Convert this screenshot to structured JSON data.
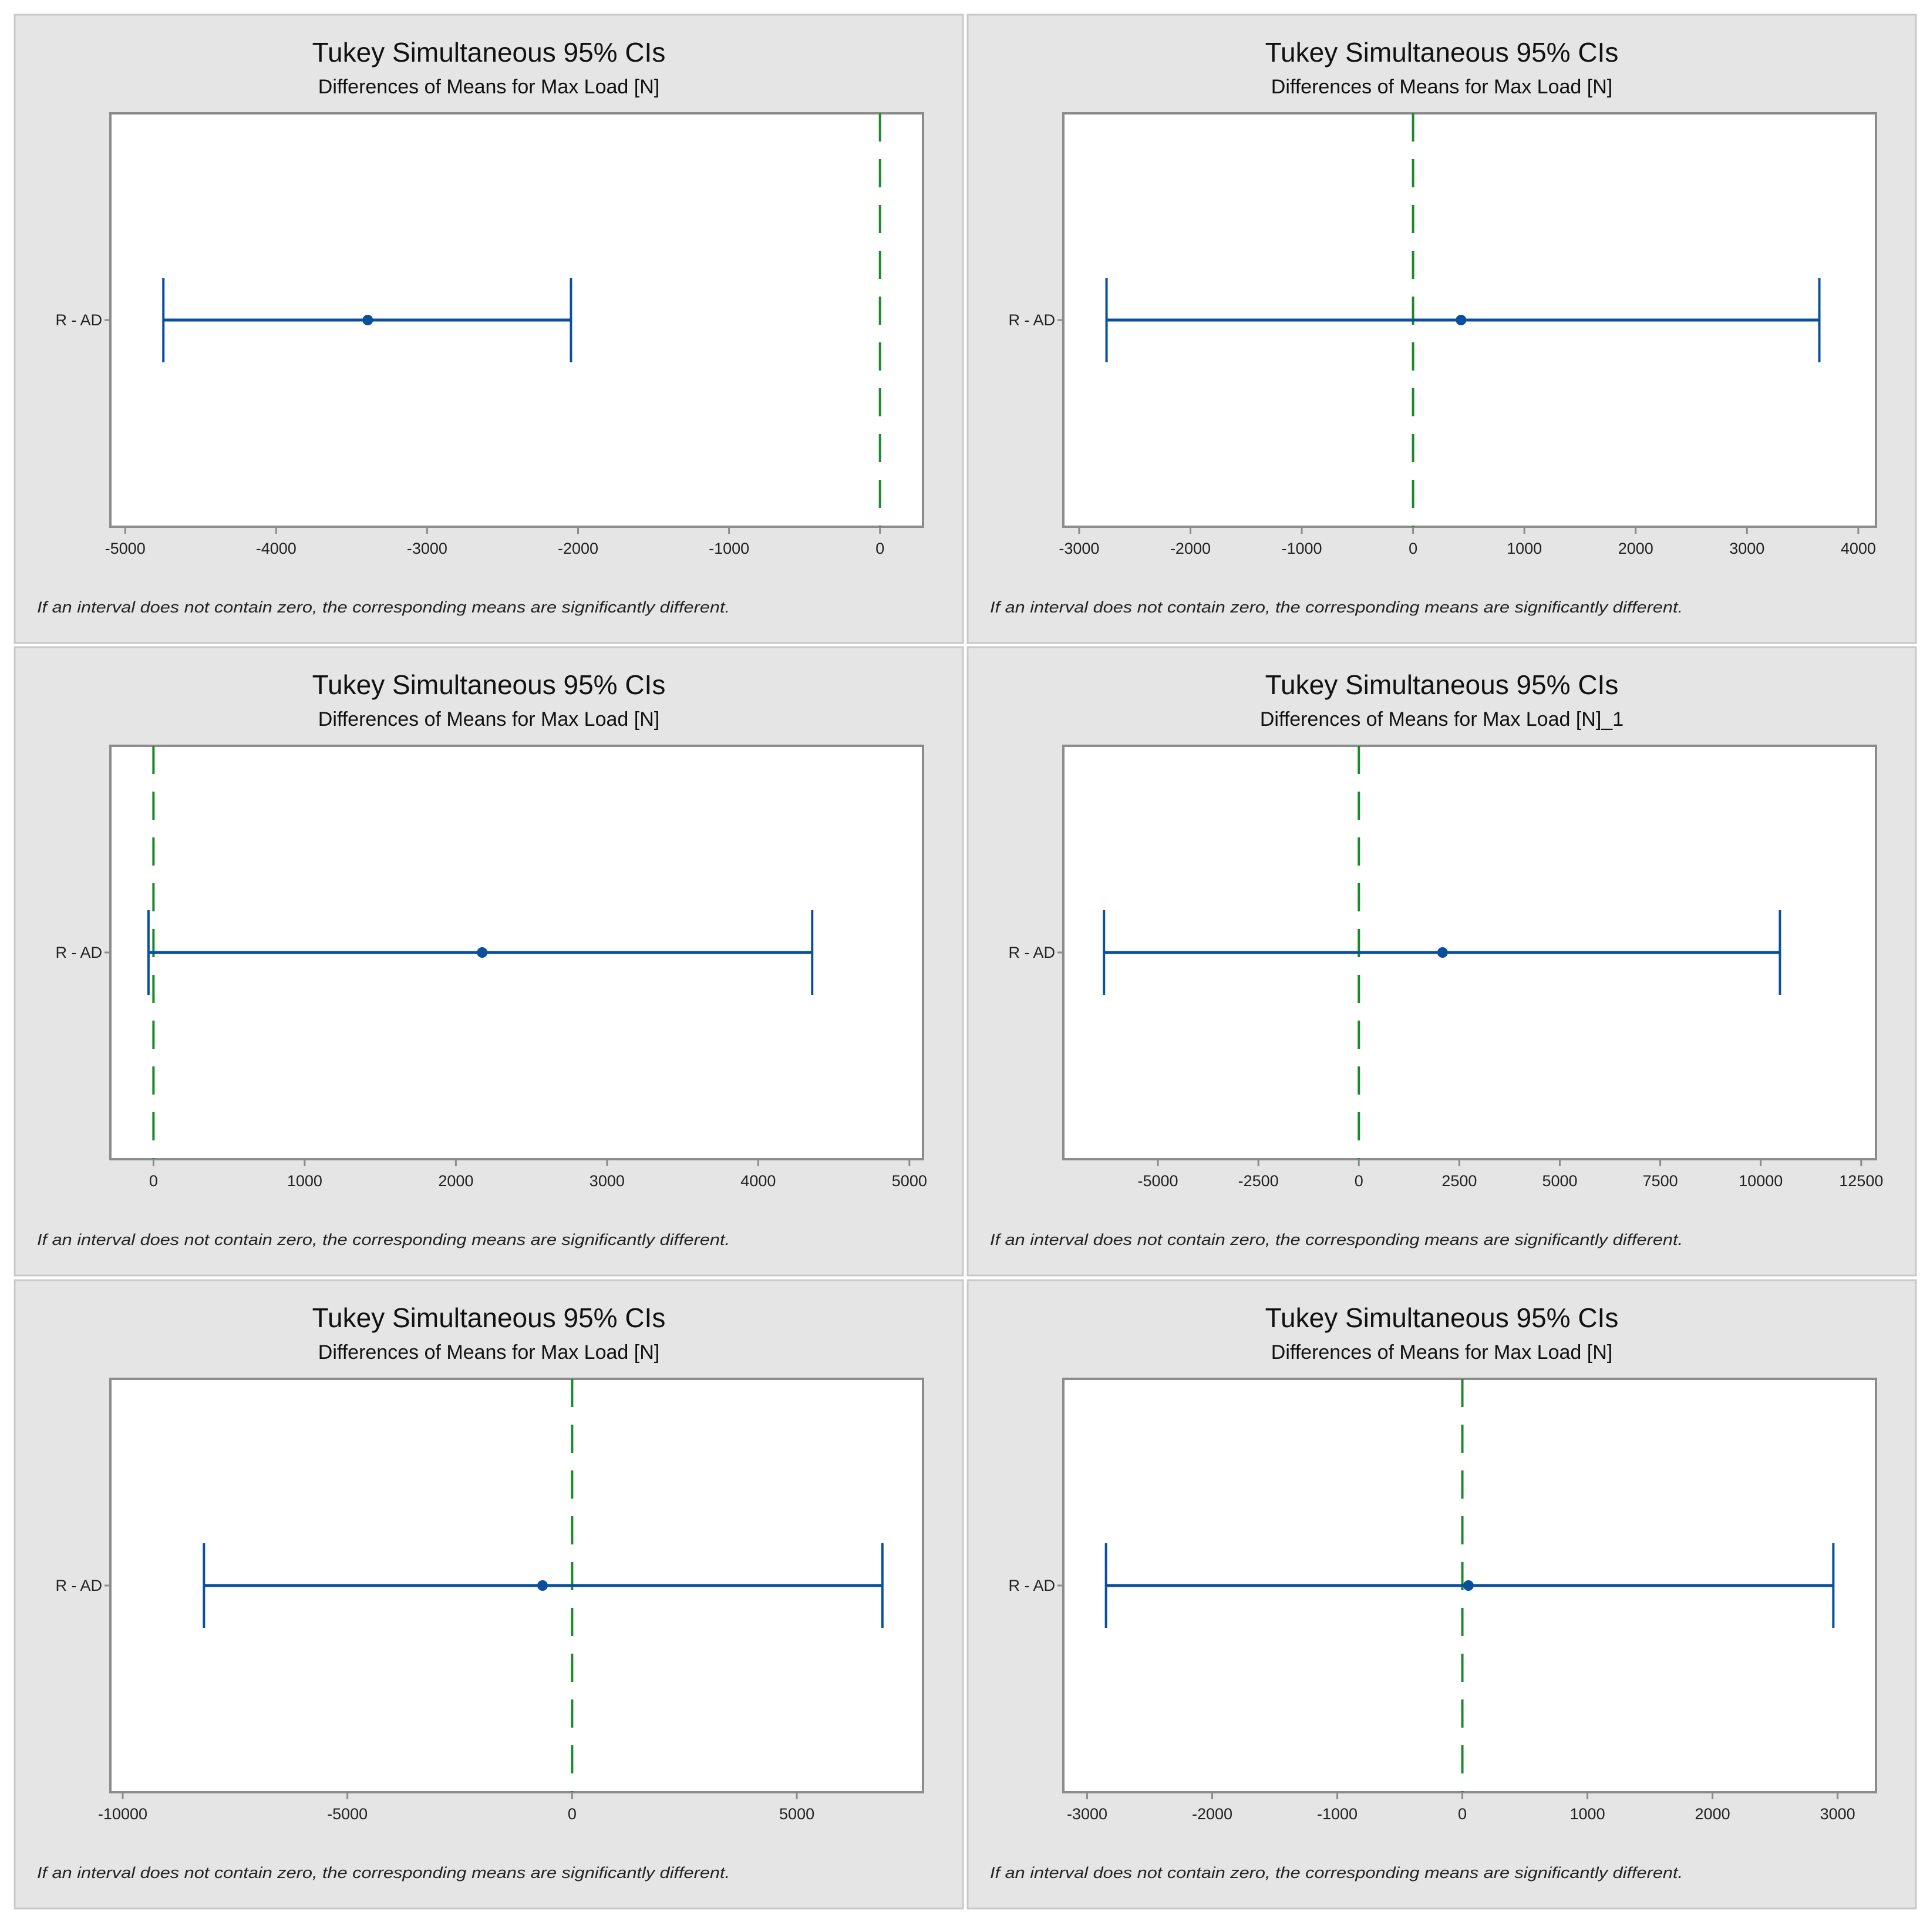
{
  "colors": {
    "panel_bg": "#e5e5e5",
    "panel_border": "#c8c8c8",
    "plot_bg": "#ffffff",
    "axis": "#8c8c8c",
    "interval": "#0a4f9e",
    "zero_line": "#1a8a2a"
  },
  "chart_data": [
    {
      "type": "interval",
      "title": "Tukey Simultaneous 95% CIs",
      "subtitle": "Differences of Means for Max Load [N]",
      "category": "R - AD",
      "lower": -4747,
      "mean": -3393,
      "upper": -2047,
      "xlim": [
        -5098,
        285
      ],
      "ticks": [
        -5000,
        -4000,
        -3000,
        -2000,
        -1000,
        0
      ],
      "tick_labels": [
        "-5000",
        "-4000",
        "-3000",
        "-2000",
        "-1000",
        "0"
      ],
      "reference_line": 0,
      "note": "If an interval does not contain zero, the corresponding means are significantly different."
    },
    {
      "type": "interval",
      "title": "Tukey Simultaneous 95% CIs",
      "subtitle": "Differences of Means for Max Load [N]",
      "category": "R - AD",
      "lower": -2754,
      "mean": 431,
      "upper": 3650,
      "xlim": [
        -3142,
        4159
      ],
      "ticks": [
        -3000,
        -2000,
        -1000,
        0,
        1000,
        2000,
        3000,
        4000
      ],
      "tick_labels": [
        "-3000",
        "-2000",
        "-1000",
        "0",
        "1000",
        "2000",
        "3000",
        "4000"
      ],
      "reference_line": 0,
      "note": "If an interval does not contain zero, the corresponding means are significantly different."
    },
    {
      "type": "interval",
      "title": "Tukey Simultaneous 95% CIs",
      "subtitle": "Differences of Means for Max Load [N]",
      "category": "R - AD",
      "lower": -33,
      "mean": 2174,
      "upper": 4357,
      "xlim": [
        -285,
        5090
      ],
      "ticks": [
        0,
        1000,
        2000,
        3000,
        4000,
        5000
      ],
      "tick_labels": [
        "0",
        "1000",
        "2000",
        "3000",
        "4000",
        "5000"
      ],
      "reference_line": 0,
      "note": "If an interval does not contain zero, the corresponding means are significantly different."
    },
    {
      "type": "interval",
      "title": "Tukey Simultaneous 95% CIs",
      "subtitle": "Differences of Means for Max Load [N]_1",
      "category": "R - AD",
      "lower": -6342,
      "mean": 2083,
      "upper": 10478,
      "xlim": [
        -7353,
        12868
      ],
      "ticks": [
        -5000,
        -2500,
        0,
        2500,
        5000,
        7500,
        10000,
        12500
      ],
      "tick_labels": [
        "-5000",
        "-2500",
        "0",
        "2500",
        "5000",
        "7500",
        "10000",
        "12500"
      ],
      "reference_line": 0,
      "note": "If an interval does not contain zero, the corresponding means are significantly different."
    },
    {
      "type": "interval",
      "title": "Tukey Simultaneous 95% CIs",
      "subtitle": "Differences of Means for Max Load [N]",
      "category": "R - AD",
      "lower": -8192,
      "mean": -658,
      "upper": 6904,
      "xlim": [
        -10274,
        7808
      ],
      "ticks": [
        -10000,
        -5000,
        0,
        5000
      ],
      "tick_labels": [
        "-10000",
        "-5000",
        "0",
        "5000"
      ],
      "reference_line": 0,
      "note": "If an interval does not contain zero, the corresponding means are significantly different."
    },
    {
      "type": "interval",
      "title": "Tukey Simultaneous 95% CIs",
      "subtitle": "Differences of Means for Max Load [N]",
      "category": "R - AD",
      "lower": -2849,
      "mean": 49,
      "upper": 2966,
      "xlim": [
        -3190,
        3307
      ],
      "ticks": [
        -3000,
        -2000,
        -1000,
        0,
        1000,
        2000,
        3000
      ],
      "tick_labels": [
        "-3000",
        "-2000",
        "-1000",
        "0",
        "1000",
        "2000",
        "3000"
      ],
      "reference_line": 0,
      "note": "If an interval does not contain zero, the corresponding means are significantly different."
    }
  ]
}
